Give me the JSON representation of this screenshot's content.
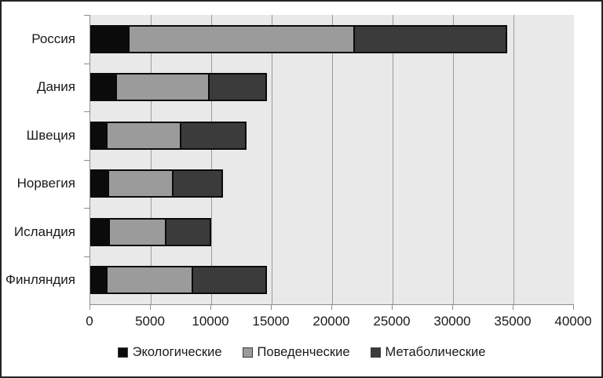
{
  "figure": {
    "kind": "stacked horizontal bar chart",
    "background": "#ffffff",
    "border_color": "#242424"
  },
  "colors": {
    "plot_background": "#e9e9e9",
    "gridline": "#9b9b9b",
    "axis": "#8c8c8c",
    "bar_outline": "#0a0a0a",
    "text": "#1a1a1a"
  },
  "chart_data": {
    "type": "bar",
    "orientation": "horizontal",
    "stacked": true,
    "title": "",
    "xlabel": "",
    "ylabel": "",
    "grid": "vertical gridlines on",
    "legend_position": "bottom",
    "categories": [
      "Россия",
      "Дания",
      "Швеция",
      "Норвегия",
      "Исландия",
      "Финляндия"
    ],
    "series": [
      {
        "name": "Экологические",
        "color": "#0b0b0b",
        "values": [
          3000,
          2000,
          1200,
          1300,
          1400,
          1200
        ]
      },
      {
        "name": "Поведенческие",
        "color": "#9b9b9b",
        "values": [
          18800,
          7800,
          6200,
          5500,
          4800,
          7200
        ]
      },
      {
        "name": "Метаболические",
        "color": "#3b3b3b",
        "values": [
          12700,
          4800,
          5500,
          4200,
          3800,
          6200
        ]
      }
    ],
    "totals": [
      34500,
      14600,
      12900,
      11000,
      10000,
      14600
    ],
    "xlim": [
      0,
      40000
    ],
    "xticks": [
      0,
      5000,
      10000,
      15000,
      20000,
      25000,
      30000,
      35000,
      40000
    ],
    "xtick_labels": [
      "0",
      "5000",
      "10000",
      "15000",
      "20000",
      "25000",
      "30000",
      "35000",
      "40000"
    ]
  }
}
